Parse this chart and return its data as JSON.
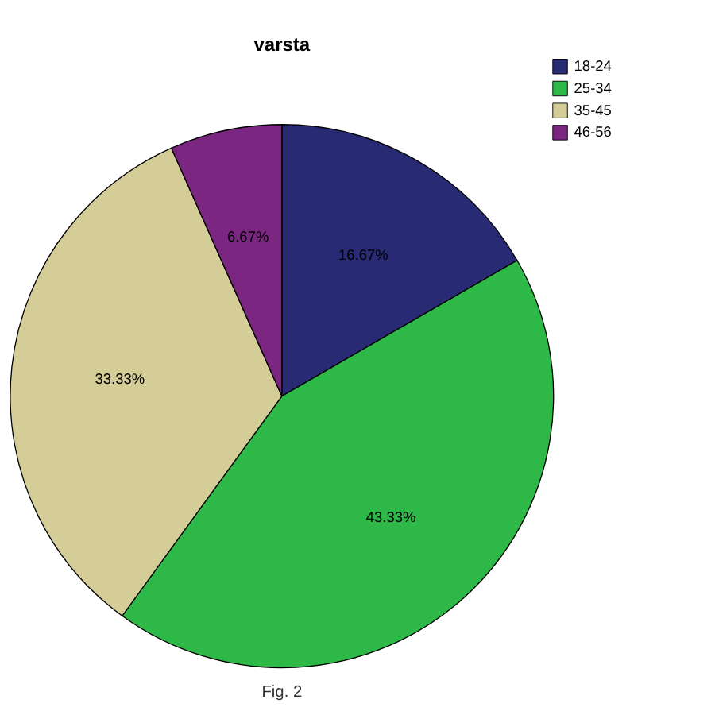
{
  "chart_data": {
    "type": "pie",
    "title": "varsta",
    "categories": [
      "18-24",
      "25-34",
      "35-45",
      "46-56"
    ],
    "values": [
      16.67,
      43.33,
      33.33,
      6.67
    ],
    "colors": [
      "#282a73",
      "#2db847",
      "#d4cd98",
      "#7b2781"
    ],
    "value_labels": [
      "16.67%",
      "43.33%",
      "33.33%",
      "6.67%"
    ],
    "legend": "top right",
    "annotations": [
      "Fig. 2"
    ]
  }
}
